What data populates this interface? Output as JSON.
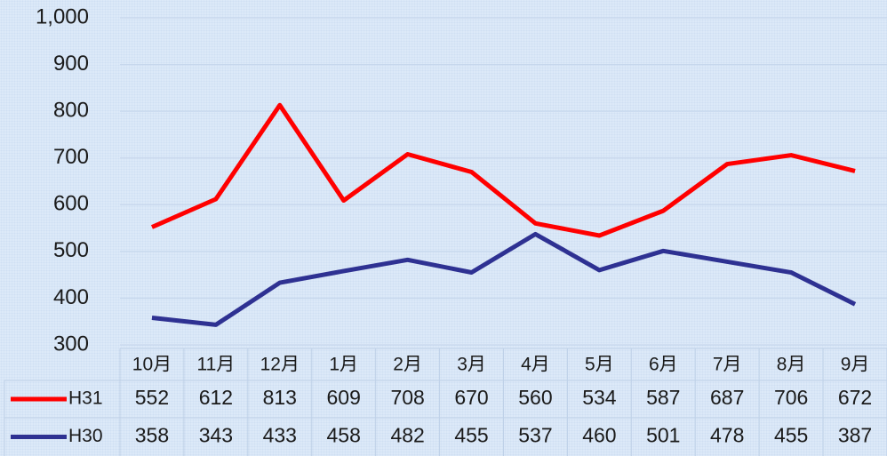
{
  "chart_data": {
    "type": "line",
    "categories": [
      "10月",
      "11月",
      "12月",
      "1月",
      "2月",
      "3月",
      "4月",
      "5月",
      "6月",
      "7月",
      "8月",
      "9月"
    ],
    "series": [
      {
        "name": "H31",
        "color": "#ff0000",
        "values": [
          552,
          612,
          813,
          609,
          708,
          670,
          560,
          534,
          587,
          687,
          706,
          672
        ]
      },
      {
        "name": "H30",
        "color": "#2e3192",
        "values": [
          358,
          343,
          433,
          458,
          482,
          455,
          537,
          460,
          501,
          478,
          455,
          387
        ]
      }
    ],
    "ylim": [
      300,
      1000
    ],
    "yticks": [
      300,
      400,
      500,
      600,
      700,
      800,
      900,
      {
        "value": 1000,
        "label": "1,000"
      }
    ],
    "grid": true,
    "data_table": true
  }
}
